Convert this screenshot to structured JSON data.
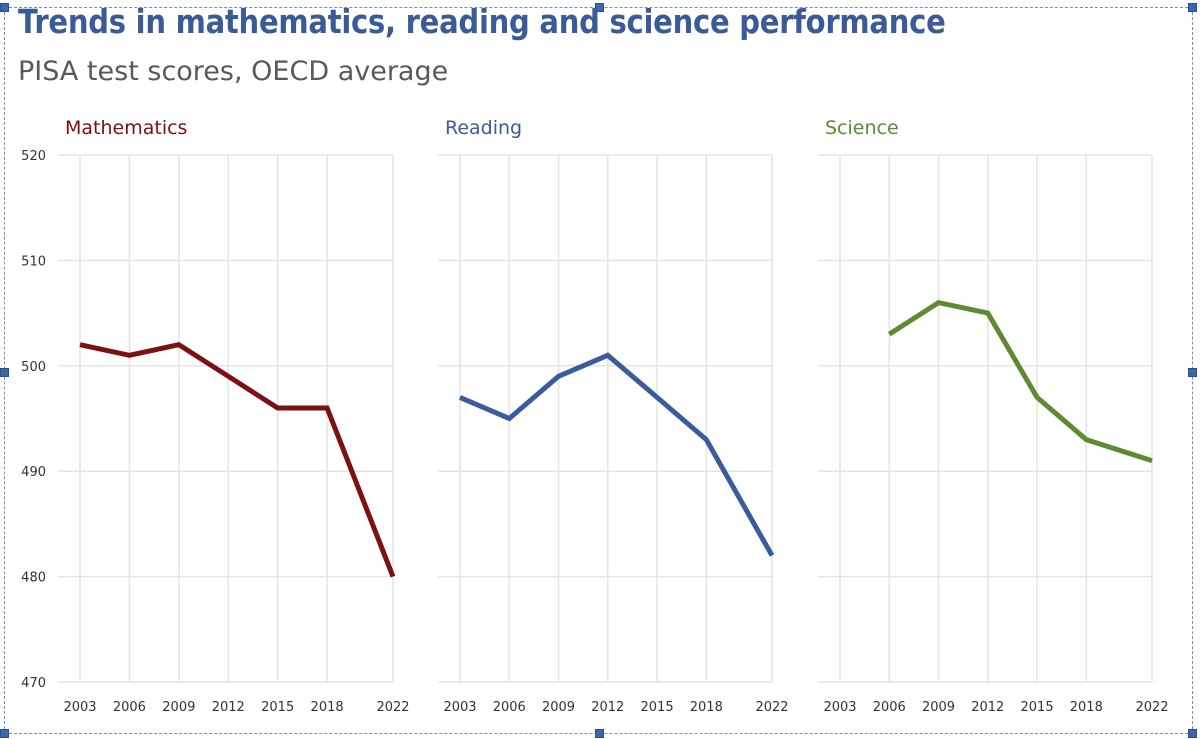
{
  "title": "Trends in mathematics, reading and science performance",
  "subtitle": "PISA test scores, OECD average",
  "colors": {
    "title": "#3a5a98",
    "subtitle": "#595959",
    "grid": "#e4e4e4"
  },
  "chart_data": {
    "type": "line",
    "title": "Trends in mathematics, reading and science performance",
    "subtitle": "PISA test scores, OECD average",
    "x": [
      2003,
      2006,
      2009,
      2012,
      2015,
      2018,
      2022
    ],
    "ylim": [
      470,
      520
    ],
    "yticks": [
      470,
      480,
      490,
      500,
      510,
      520
    ],
    "grid": true,
    "legend": "none",
    "series": [
      {
        "name": "Mathematics",
        "color": "#7b1113",
        "values": [
          502,
          501,
          502,
          499,
          496,
          496,
          480
        ]
      },
      {
        "name": "Reading",
        "color": "#3b5b9b",
        "values": [
          497,
          495,
          499,
          501,
          497,
          493,
          482
        ]
      },
      {
        "name": "Science",
        "color": "#5e8a34",
        "values": [
          null,
          503,
          506,
          505,
          497,
          493,
          491
        ]
      }
    ]
  }
}
